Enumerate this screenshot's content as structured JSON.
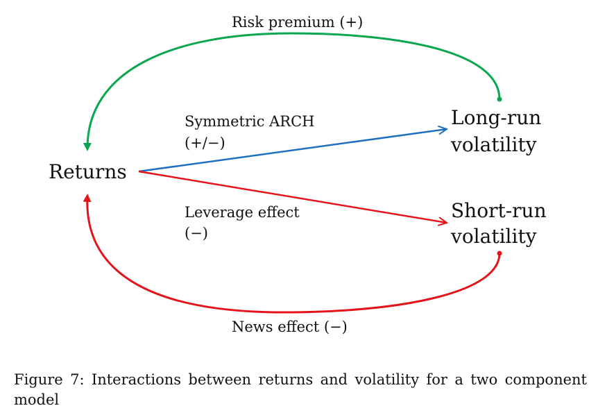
{
  "nodes": {
    "returns": "Returns",
    "long_run": [
      "Long-run",
      "volatility"
    ],
    "short_run": [
      "Short-run",
      "volatility"
    ]
  },
  "edges": {
    "risk_premium": {
      "label": "Risk premium (+)",
      "color": "#0aa650"
    },
    "symmetric_arch": {
      "label": [
        "Symmetric ARCH",
        "(+/−)"
      ],
      "color": "#1f6fc0"
    },
    "leverage_effect": {
      "label": [
        "Leverage effect",
        "(−)"
      ],
      "color": "#e4141c"
    },
    "news_effect": {
      "label": "News effect (−)",
      "color": "#e4141c"
    }
  },
  "caption": "Figure 7: Interactions between returns and volatility for a two component model"
}
